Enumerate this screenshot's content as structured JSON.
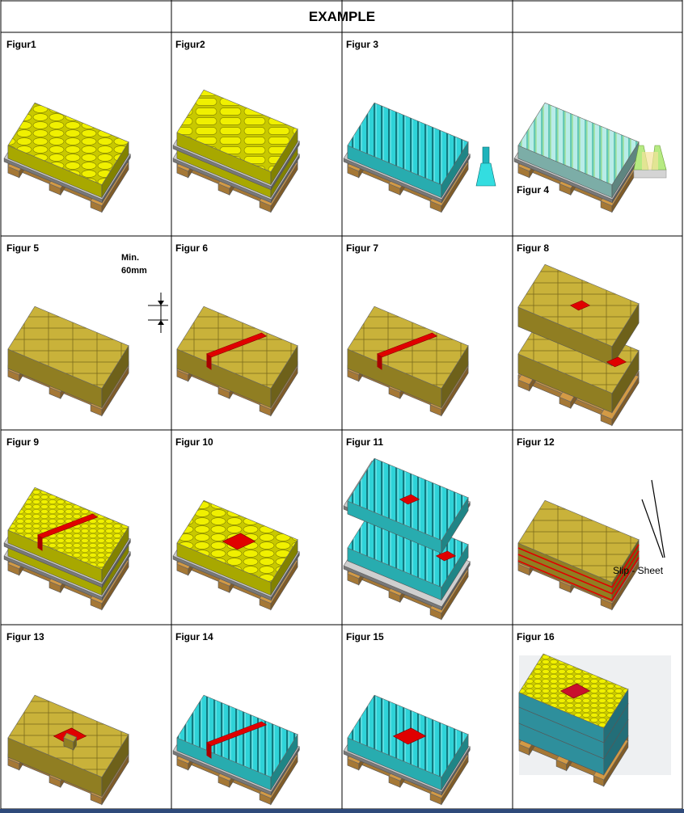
{
  "header": {
    "title": "EXAMPLE"
  },
  "cells": [
    {
      "label": "Figur1",
      "kind": "cans"
    },
    {
      "label": "Figur2",
      "kind": "ovals"
    },
    {
      "label": "Figur 3",
      "kind": "bottles"
    },
    {
      "label": "Figur 4",
      "kind": "bottles-clear"
    },
    {
      "label": "Figur 5",
      "kind": "boxes"
    },
    {
      "label": "Figur 6",
      "kind": "boxes-slot"
    },
    {
      "label": "Figur 7",
      "kind": "boxes-slot"
    },
    {
      "label": "Figur 8",
      "kind": "boxes-two-layer"
    },
    {
      "label": "Figur 9",
      "kind": "cans-small-slot"
    },
    {
      "label": "Figur 10",
      "kind": "cans-hole"
    },
    {
      "label": "Figur 11",
      "kind": "bottles-two-layer"
    },
    {
      "label": "Figur 12",
      "kind": "boxes-slip"
    },
    {
      "label": "Figur 13",
      "kind": "boxes-hole"
    },
    {
      "label": "Figur 14",
      "kind": "bottles-slot"
    },
    {
      "label": "Figur 15",
      "kind": "bottles-hole"
    },
    {
      "label": "Figur 16",
      "kind": "photo"
    }
  ],
  "annotations": {
    "min_label_line1": "Min.",
    "min_label_line2": "60mm",
    "slip_sheet": "Slip - Sheet"
  },
  "colors": {
    "can_yellow": "#d8d800",
    "box_olive": "#b8a22c",
    "bottle_cyan": "#33dde0",
    "marker_red": "#e00000",
    "pallet_wood": "#d39a45",
    "sheet_grey": "#cfcfcf",
    "grid_line": "#000000"
  }
}
